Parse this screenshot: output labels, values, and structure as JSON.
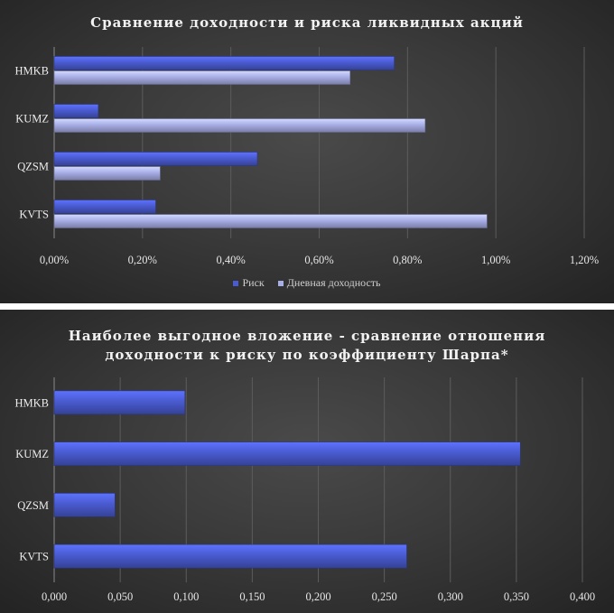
{
  "chart_data": [
    {
      "type": "bar",
      "orientation": "horizontal",
      "title": "Сравнение доходности и риска ликвидных акций",
      "categories": [
        "HMKB",
        "KUMZ",
        "QZSM",
        "KVTS"
      ],
      "series": [
        {
          "name": "Риск",
          "values": [
            0.77,
            0.1,
            0.46,
            0.23
          ],
          "color": "#4a5bd0"
        },
        {
          "name": "Дневная доходность",
          "values": [
            0.67,
            0.84,
            0.24,
            0.98
          ],
          "color": "#a8aee6"
        }
      ],
      "xlim": [
        0,
        1.2
      ],
      "xticks": [
        "0,00%",
        "0,20%",
        "0,40%",
        "0,60%",
        "0,80%",
        "1,00%",
        "1,20%"
      ],
      "grid": true,
      "legend": "bottom"
    },
    {
      "type": "bar",
      "orientation": "horizontal",
      "title_lines": [
        "Наиболее выгодное вложение - сравнение отношения",
        "доходности к риску по коэффициенту Шарпа*"
      ],
      "categories": [
        "HMKB",
        "KUMZ",
        "QZSM",
        "KVTS"
      ],
      "series": [
        {
          "values": [
            0.099,
            0.353,
            0.046,
            0.267
          ],
          "color": "#4a5bd0"
        }
      ],
      "xlim": [
        0,
        0.4
      ],
      "xticks": [
        "0,000",
        "0,050",
        "0,100",
        "0,150",
        "0,200",
        "0,250",
        "0,300",
        "0,350",
        "0,400"
      ],
      "grid": true
    }
  ]
}
